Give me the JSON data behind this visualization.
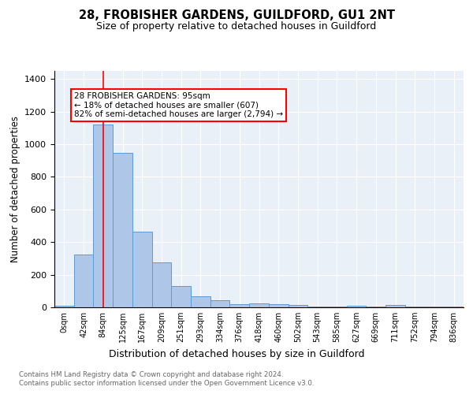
{
  "title1": "28, FROBISHER GARDENS, GUILDFORD, GU1 2NT",
  "title2": "Size of property relative to detached houses in Guildford",
  "xlabel": "Distribution of detached houses by size in Guildford",
  "ylabel": "Number of detached properties",
  "bar_labels": [
    "0sqm",
    "42sqm",
    "84sqm",
    "125sqm",
    "167sqm",
    "209sqm",
    "251sqm",
    "293sqm",
    "334sqm",
    "376sqm",
    "418sqm",
    "460sqm",
    "502sqm",
    "543sqm",
    "585sqm",
    "627sqm",
    "669sqm",
    "711sqm",
    "752sqm",
    "794sqm",
    "836sqm"
  ],
  "bar_values": [
    10,
    325,
    1120,
    945,
    465,
    275,
    130,
    68,
    45,
    18,
    22,
    20,
    15,
    5,
    5,
    10,
    5,
    15,
    5,
    5,
    5
  ],
  "bar_color": "#aec6e8",
  "bar_edge_color": "#5b9bd5",
  "background_color": "#eaf0f8",
  "grid_color": "#ffffff",
  "red_line_x": 2,
  "annotation_text": "28 FROBISHER GARDENS: 95sqm\n← 18% of detached houses are smaller (607)\n82% of semi-detached houses are larger (2,794) →",
  "footer1": "Contains HM Land Registry data © Crown copyright and database right 2024.",
  "footer2": "Contains public sector information licensed under the Open Government Licence v3.0.",
  "ylim": [
    0,
    1450
  ],
  "yticks": [
    0,
    200,
    400,
    600,
    800,
    1000,
    1200,
    1400
  ]
}
